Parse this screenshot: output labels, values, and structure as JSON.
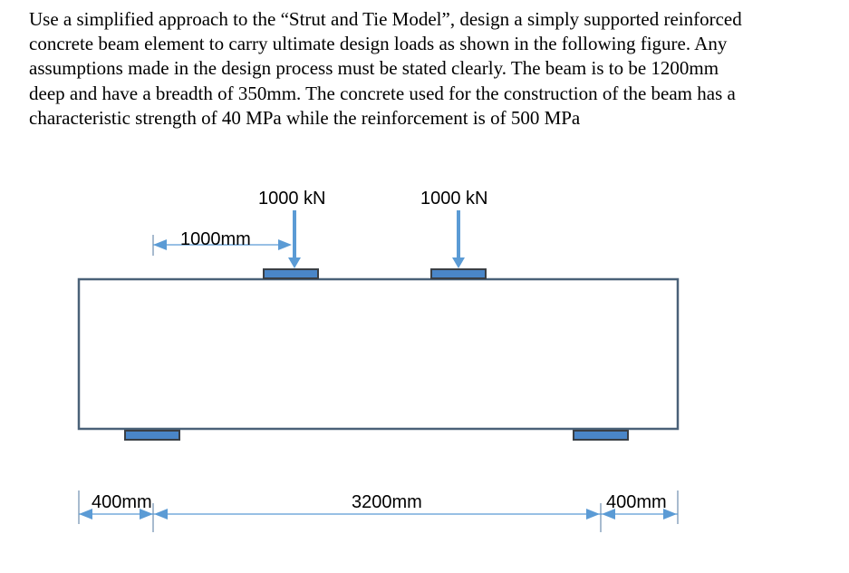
{
  "problem": {
    "lines": [
      "Use a simplified approach to the “Strut and Tie Model”, design a simply supported reinforced",
      "concrete beam element to carry ultimate design loads as shown in the following figure. Any",
      "assumptions made in the design process must be stated clearly. The beam is to be 1200mm",
      "deep and have a breadth of 350mm. The concrete used for the construction of the beam has a",
      "characteristic strength of 40 MPa while the reinforcement is of 500 MPa"
    ]
  },
  "diagram": {
    "loads": [
      {
        "label": "1000 kN"
      },
      {
        "label": "1000 kN"
      }
    ],
    "load_offset_label": "1000mm",
    "dimensions": {
      "left_overhang": "400mm",
      "span": "3200mm",
      "right_overhang": "400mm"
    },
    "colors": {
      "beam_outline": "#4a6178",
      "plate_fill": "#4a86c8",
      "plate_border": "#3a3f45",
      "arrow": "#5b9bd5"
    }
  }
}
